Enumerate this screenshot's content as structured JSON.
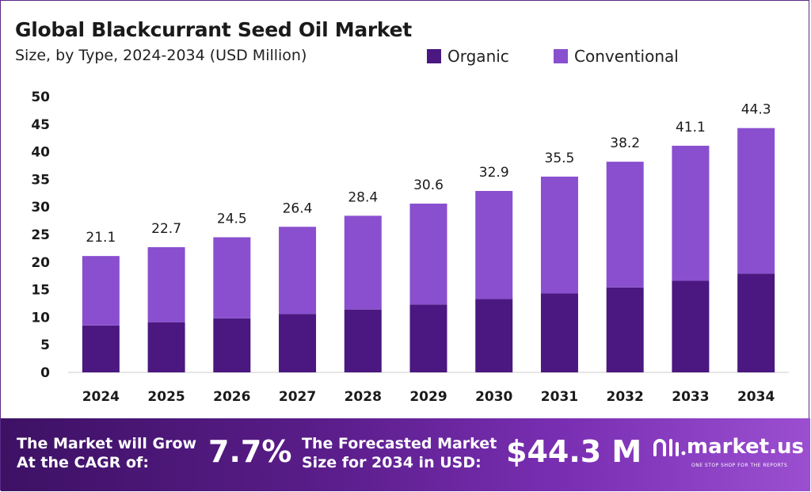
{
  "chart_data": {
    "type": "bar",
    "stacked": true,
    "title": "Global Blackcurrant Seed Oil Market",
    "subtitle": "Size, by Type, 2024-2034 (USD Million)",
    "categories": [
      "2024",
      "2025",
      "2026",
      "2027",
      "2028",
      "2029",
      "2030",
      "2031",
      "2032",
      "2033",
      "2034"
    ],
    "totals": [
      21.1,
      22.7,
      24.5,
      26.4,
      28.4,
      30.6,
      32.9,
      35.5,
      38.2,
      41.1,
      44.3
    ],
    "total_labels": [
      "21.1",
      "22.7",
      "24.5",
      "26.4",
      "28.4",
      "30.6",
      "32.9",
      "35.5",
      "38.2",
      "41.1",
      "44.3"
    ],
    "series": [
      {
        "name": "Organic",
        "color": "#4a1880",
        "values": [
          8.5,
          9.1,
          9.8,
          10.6,
          11.4,
          12.3,
          13.3,
          14.3,
          15.4,
          16.6,
          17.9
        ]
      },
      {
        "name": "Conventional",
        "color": "#8a4fcf",
        "values": [
          12.6,
          13.6,
          14.7,
          15.8,
          17.0,
          18.3,
          19.6,
          21.2,
          22.8,
          24.5,
          26.4
        ]
      }
    ],
    "ylim": [
      0,
      50
    ],
    "yticks": [
      0,
      5,
      10,
      15,
      20,
      25,
      30,
      35,
      40,
      45,
      50
    ],
    "legend_position": "top-right",
    "grid": false
  },
  "footer": {
    "cagr_label_line1": "The Market will Grow",
    "cagr_label_line2": "At the CAGR of:",
    "cagr_value": "7.7%",
    "forecast_label_line1": "The Forecasted Market",
    "forecast_label_line2": "Size for 2034 in USD:",
    "forecast_value": "$44.3 M",
    "brand_name": "market.us",
    "brand_tagline": "ONE STOP SHOP FOR THE REPORTS",
    "brand_icon": "market-us-logo-icon"
  }
}
